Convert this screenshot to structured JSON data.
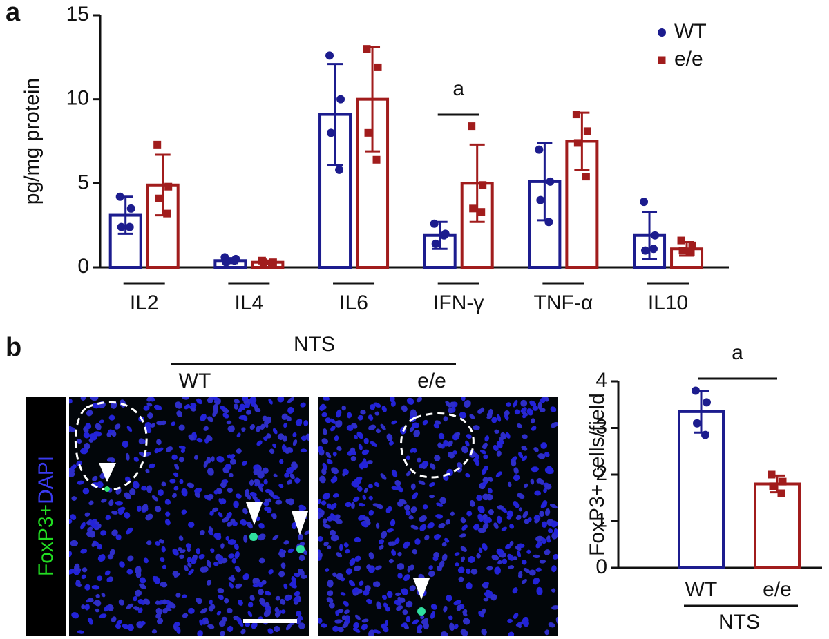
{
  "panel_labels": [
    "a",
    "b"
  ],
  "micrograph": {
    "group": "NTS",
    "columns": [
      "WT",
      "e/e"
    ],
    "stain": [
      "FoxP3+",
      "DAPI"
    ],
    "stain_colors": [
      "#22dd22",
      "#3a3af0"
    ]
  },
  "chart_data": [
    {
      "type": "bar",
      "ylabel": "pg/mg protein",
      "categories": [
        "IL2",
        "IL4",
        "IL6",
        "IFN-γ",
        "TNF-α",
        "IL10"
      ],
      "series": [
        {
          "name": "WT",
          "color": "#1c1c8e",
          "marker": "circle",
          "values": [
            3.1,
            0.4,
            9.1,
            1.9,
            5.1,
            1.9
          ],
          "errors": [
            1.1,
            0.15,
            3.0,
            0.8,
            2.3,
            1.4
          ],
          "points": [
            [
              4.2,
              3.5,
              2.4,
              2.4
            ],
            [
              0.6,
              0.5,
              0.3,
              0.4
            ],
            [
              12.6,
              10.0,
              8.0,
              5.8
            ],
            [
              2.6,
              2.0,
              1.4,
              1.9
            ],
            [
              7.0,
              5.1,
              4.0,
              2.7
            ],
            [
              3.9,
              1.9,
              1.0,
              1.1
            ]
          ]
        },
        {
          "name": "e/e",
          "color": "#a11c1c",
          "marker": "square",
          "values": [
            4.9,
            0.3,
            10.0,
            5.0,
            7.5,
            1.1
          ],
          "errors": [
            1.8,
            0.1,
            3.1,
            2.3,
            1.7,
            0.4
          ],
          "points": [
            [
              7.3,
              4.8,
              4.1,
              3.2
            ],
            [
              0.4,
              0.3,
              0.3,
              0.2
            ],
            [
              13.0,
              11.9,
              8.0,
              6.4
            ],
            [
              8.4,
              4.9,
              3.5,
              3.3
            ],
            [
              9.1,
              8.1,
              7.4,
              5.4
            ],
            [
              1.6,
              1.3,
              1.0,
              0.9
            ]
          ]
        }
      ],
      "annotation": {
        "text": "a",
        "category": "IFN-γ"
      },
      "ylim": [
        0,
        15
      ],
      "yticks": [
        0,
        5,
        10,
        15
      ],
      "legend": "top-right"
    },
    {
      "type": "bar",
      "ylabel": "FoxP3+ cells/field",
      "categories": [
        "WT",
        "e/e"
      ],
      "group_label": "NTS",
      "values": [
        3.35,
        1.8
      ],
      "errors": [
        0.45,
        0.18
      ],
      "points": [
        [
          3.8,
          3.55,
          3.1,
          2.85
        ],
        [
          2.0,
          1.85,
          1.75,
          1.6
        ]
      ],
      "colors": [
        "#1c1c8e",
        "#a11c1c"
      ],
      "annotation": {
        "text": "a"
      },
      "ylim": [
        0,
        4
      ],
      "yticks": [
        0,
        1,
        2,
        3,
        4
      ]
    }
  ]
}
